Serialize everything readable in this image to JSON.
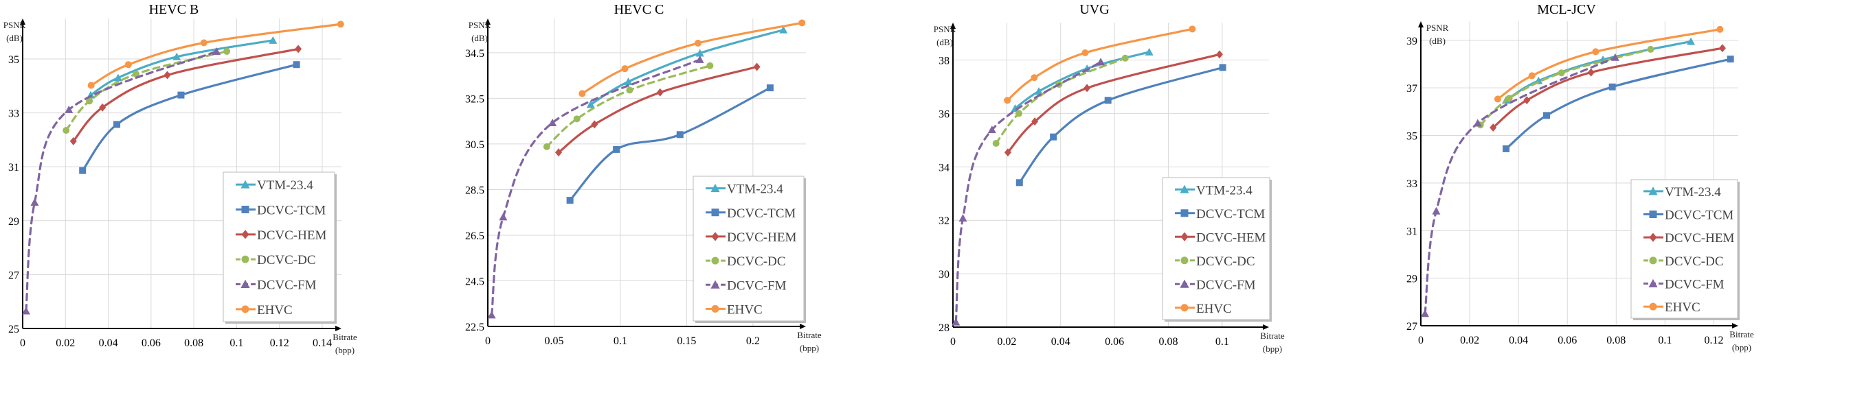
{
  "colors": {
    "VTM-23.4": "#4bacc6",
    "DCVC-TCM": "#4f81bd",
    "DCVC-HEM": "#c0504d",
    "DCVC-DC": "#9bbb59",
    "DCVC-FM": "#8064a2",
    "EHVC": "#f79646"
  },
  "chart_data": [
    {
      "type": "line",
      "title": "HEVC B",
      "xlabel": [
        "Bitrate",
        "(bpp)"
      ],
      "ylabel": [
        "PSNR",
        "(dB)"
      ],
      "xlim": [
        0,
        0.149
      ],
      "ylim": [
        25,
        36.5
      ],
      "xticks": [
        "0",
        "0.02",
        "0.04",
        "0.06",
        "0.08",
        "0.1",
        "0.12",
        "0.14"
      ],
      "yticks": [
        "25",
        "27",
        "29",
        "31",
        "33",
        "35"
      ],
      "grid": true,
      "legend": "bottom-right",
      "series": [
        {
          "name": "VTM-23.4",
          "marker": "triangle",
          "dashed": false,
          "x": [
            0.0318,
            0.0446,
            0.072,
            0.117
          ],
          "y": [
            33.66,
            34.3,
            35.08,
            35.69
          ]
        },
        {
          "name": "DCVC-TCM",
          "marker": "square",
          "dashed": false,
          "x": [
            0.028,
            0.044,
            0.074,
            0.128
          ],
          "y": [
            30.86,
            32.57,
            33.66,
            34.79
          ]
        },
        {
          "name": "DCVC-HEM",
          "marker": "diamond",
          "dashed": false,
          "x": [
            0.0237,
            0.0373,
            0.0676,
            0.1288
          ],
          "y": [
            31.95,
            33.2,
            34.4,
            35.37
          ]
        },
        {
          "name": "DCVC-DC",
          "marker": "circle",
          "dashed": true,
          "x": [
            0.0203,
            0.0312,
            0.053,
            0.0954
          ],
          "y": [
            32.35,
            33.44,
            34.44,
            35.28
          ]
        },
        {
          "name": "DCVC-FM",
          "marker": "triangle",
          "dashed": true,
          "x": [
            0.0016,
            0.0056,
            0.0216,
            0.0906
          ],
          "y": [
            25.65,
            29.68,
            33.12,
            35.28
          ]
        },
        {
          "name": "EHVC",
          "marker": "circle",
          "dashed": false,
          "x": [
            0.032,
            0.0494,
            0.0847,
            0.1486
          ],
          "y": [
            34.02,
            34.79,
            35.6,
            36.29
          ]
        }
      ]
    },
    {
      "type": "line",
      "title": "HEVC C",
      "xlabel": [
        "Bitrate",
        "(bpp)"
      ],
      "ylabel": [
        "PSNR",
        "(dB)"
      ],
      "xlim": [
        0,
        0.24
      ],
      "ylim": [
        22.5,
        36.0
      ],
      "xticks": [
        "0",
        "0.05",
        "0.1",
        "0.15",
        "0.2"
      ],
      "yticks": [
        "22.5",
        "24.5",
        "26.5",
        "28.5",
        "30.5",
        "32.5",
        "34.5"
      ],
      "grid": true,
      "legend": "bottom-right",
      "series": [
        {
          "name": "VTM-23.4",
          "marker": "triangle",
          "dashed": false,
          "x": [
            0.0776,
            0.106,
            0.16,
            0.223
          ],
          "y": [
            32.23,
            33.23,
            34.48,
            35.5
          ]
        },
        {
          "name": "DCVC-TCM",
          "marker": "square",
          "dashed": false,
          "x": [
            0.062,
            0.097,
            0.145,
            0.213
          ],
          "y": [
            28.03,
            30.26,
            30.91,
            32.96
          ]
        },
        {
          "name": "DCVC-HEM",
          "marker": "diamond",
          "dashed": false,
          "x": [
            0.0534,
            0.0805,
            0.13,
            0.203
          ],
          "y": [
            30.13,
            31.36,
            32.76,
            33.88
          ]
        },
        {
          "name": "DCVC-DC",
          "marker": "circle",
          "dashed": true,
          "x": [
            0.0445,
            0.0672,
            0.107,
            0.1676
          ],
          "y": [
            30.38,
            31.6,
            32.86,
            33.93
          ]
        },
        {
          "name": "DCVC-FM",
          "marker": "triangle",
          "dashed": true,
          "x": [
            0.0029,
            0.0116,
            0.0488,
            0.16
          ],
          "y": [
            23.0,
            27.3,
            31.43,
            34.2
          ]
        },
        {
          "name": "EHVC",
          "marker": "circle",
          "dashed": false,
          "x": [
            0.0712,
            0.1034,
            0.1586,
            0.237
          ],
          "y": [
            32.71,
            33.8,
            34.92,
            35.81
          ]
        }
      ]
    },
    {
      "type": "line",
      "title": "UVG",
      "xlabel": [
        "Bitrate",
        "(bpp)"
      ],
      "ylabel": [
        "PSNR",
        "(dB)"
      ],
      "xlim": [
        0,
        0.1174
      ],
      "ylim": [
        28,
        39.4
      ],
      "xticks": [
        "0",
        "0.02",
        "0.04",
        "0.06",
        "0.08",
        "0.1"
      ],
      "yticks": [
        "28",
        "30",
        "32",
        "34",
        "36",
        "38"
      ],
      "grid": true,
      "legend": "bottom-right",
      "series": [
        {
          "name": "VTM-23.4",
          "marker": "triangle",
          "dashed": false,
          "x": [
            0.0231,
            0.0319,
            0.0498,
            0.0729
          ],
          "y": [
            36.19,
            36.83,
            37.68,
            38.3
          ]
        },
        {
          "name": "DCVC-TCM",
          "marker": "square",
          "dashed": false,
          "x": [
            0.0247,
            0.0373,
            0.0576,
            0.1002
          ],
          "y": [
            33.41,
            35.12,
            36.49,
            37.72
          ]
        },
        {
          "name": "DCVC-HEM",
          "marker": "diamond",
          "dashed": false,
          "x": [
            0.0204,
            0.0304,
            0.0498,
            0.099
          ],
          "y": [
            34.54,
            35.7,
            36.95,
            38.21
          ]
        },
        {
          "name": "DCVC-DC",
          "marker": "circle",
          "dashed": true,
          "x": [
            0.016,
            0.0245,
            0.0394,
            0.064
          ],
          "y": [
            34.88,
            36.0,
            37.09,
            38.07
          ]
        },
        {
          "name": "DCVC-FM",
          "marker": "triangle",
          "dashed": true,
          "x": [
            0.0011,
            0.0037,
            0.0145,
            0.0549
          ],
          "y": [
            28.19,
            32.08,
            35.39,
            37.93
          ]
        },
        {
          "name": "EHVC",
          "marker": "circle",
          "dashed": false,
          "x": [
            0.0202,
            0.0302,
            0.0491,
            0.0889
          ],
          "y": [
            36.49,
            37.34,
            38.27,
            39.16
          ]
        }
      ]
    },
    {
      "type": "line",
      "title": "MCL-JCV",
      "xlabel": [
        "Bitrate",
        "(bpp)"
      ],
      "ylabel": [
        "PSNR",
        "(dB)"
      ],
      "xlim": [
        0,
        0.13
      ],
      "ylim": [
        27,
        39.8
      ],
      "xticks": [
        "0",
        "0.02",
        "0.04",
        "0.06",
        "0.08",
        "0.1",
        "0.12"
      ],
      "yticks": [
        "27",
        "29",
        "31",
        "33",
        "35",
        "37",
        "39"
      ],
      "grid": true,
      "legend": "bottom-right",
      "series": [
        {
          "name": "VTM-23.4",
          "marker": "triangle",
          "dashed": false,
          "x": [
            0.0349,
            0.0482,
            0.0746,
            0.1106
          ],
          "y": [
            36.48,
            37.3,
            38.19,
            38.95
          ]
        },
        {
          "name": "DCVC-TCM",
          "marker": "square",
          "dashed": false,
          "x": [
            0.0349,
            0.0515,
            0.0784,
            0.1268
          ],
          "y": [
            34.44,
            35.84,
            37.04,
            38.21
          ]
        },
        {
          "name": "DCVC-HEM",
          "marker": "diamond",
          "dashed": false,
          "x": [
            0.0296,
            0.0434,
            0.0697,
            0.1235
          ],
          "y": [
            35.33,
            36.48,
            37.65,
            38.67
          ]
        },
        {
          "name": "DCVC-DC",
          "marker": "circle",
          "dashed": true,
          "x": [
            0.0244,
            0.0362,
            0.0576,
            0.0941
          ],
          "y": [
            35.44,
            36.56,
            37.63,
            38.62
          ]
        },
        {
          "name": "DCVC-FM",
          "marker": "triangle",
          "dashed": true,
          "x": [
            0.0017,
            0.0063,
            0.0233,
            0.0796
          ],
          "y": [
            27.51,
            31.82,
            35.52,
            38.28
          ]
        },
        {
          "name": "EHVC",
          "marker": "circle",
          "dashed": false,
          "x": [
            0.0315,
            0.0455,
            0.0716,
            0.1225
          ],
          "y": [
            36.53,
            37.51,
            38.52,
            39.46
          ]
        }
      ]
    }
  ]
}
